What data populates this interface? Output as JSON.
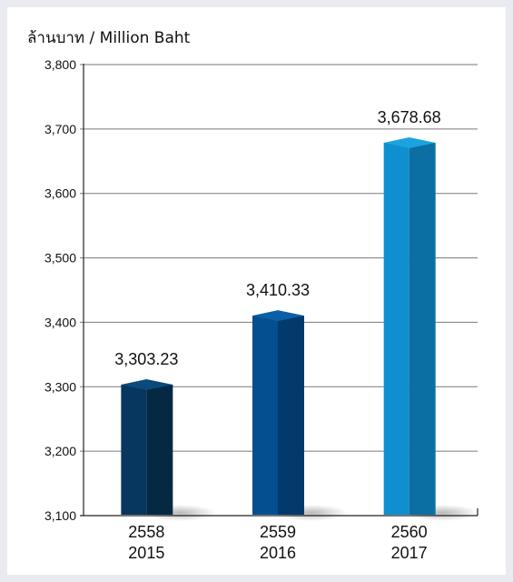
{
  "chart_data": {
    "type": "bar",
    "unit_label": "ล้านบาท / Million Baht",
    "categories": [
      {
        "thai_year": "2558",
        "year": "2015"
      },
      {
        "thai_year": "2559",
        "year": "2016"
      },
      {
        "thai_year": "2560",
        "year": "2017"
      }
    ],
    "values": [
      3303.23,
      3410.33,
      3678.68
    ],
    "value_labels": [
      "3,303.23",
      "3,410.33",
      "3,678.68"
    ],
    "ylim": [
      3100,
      3800
    ],
    "yticks": [
      3100,
      3200,
      3300,
      3400,
      3500,
      3600,
      3700,
      3800
    ],
    "ytick_labels": [
      "3,100",
      "3,200",
      "3,300",
      "3,400",
      "3,500",
      "3,600",
      "3,700",
      "3,800"
    ],
    "grid": true,
    "bar_colors": [
      {
        "front": "#07375e",
        "side": "#052943",
        "top": "#0b4a7c"
      },
      {
        "front": "#034f8f",
        "side": "#023a6b",
        "top": "#0a5fa6"
      },
      {
        "front": "#0f8fcf",
        "side": "#0b6fa3",
        "top": "#1ba3df"
      }
    ]
  }
}
